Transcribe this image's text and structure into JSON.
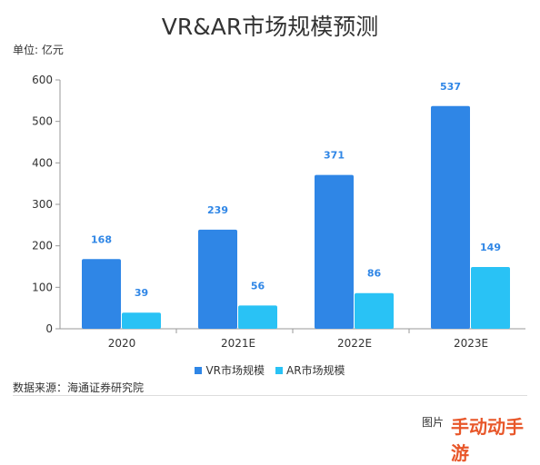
{
  "title": "VR&AR市场规模预测",
  "unit_label": "单位: 亿元",
  "source_label": "数据来源：海通证券研究院",
  "footer_note": "图片",
  "watermark": "手动动手游",
  "colors": {
    "vr": "#2f86e6",
    "ar": "#29c2f5",
    "axis": "#999999",
    "grid": "#dddddd",
    "label": "#2f86e6"
  },
  "chart_data": {
    "type": "bar",
    "title": "VR&AR市场规模预测",
    "ylabel": "单位: 亿元",
    "xlabel": "",
    "categories": [
      "2020",
      "2021E",
      "2022E",
      "2023E"
    ],
    "series": [
      {
        "name": "VR市场规模",
        "values": [
          168,
          239,
          371,
          537
        ]
      },
      {
        "name": "AR市场规模",
        "values": [
          39,
          56,
          86,
          149
        ]
      }
    ],
    "ylim": [
      0,
      600
    ],
    "yticks": [
      0,
      100,
      200,
      300,
      400,
      500,
      600
    ],
    "grid": false,
    "legend": "bottom-center"
  }
}
